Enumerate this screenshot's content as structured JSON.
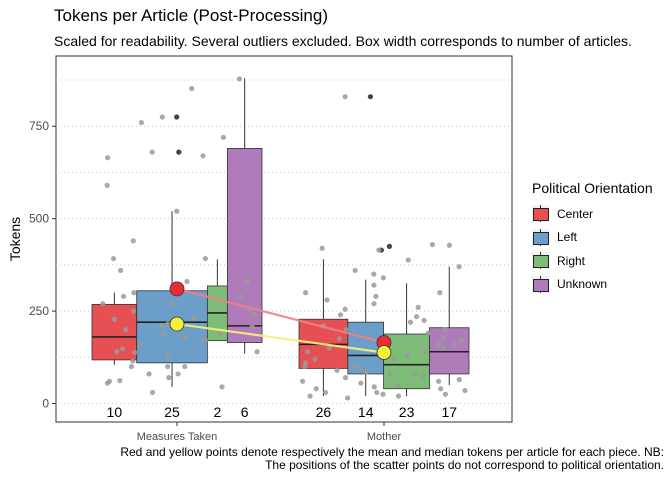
{
  "chart_data": {
    "type": "boxplot",
    "title": "Tokens per Article (Post-Processing)",
    "subtitle": "Scaled for readability. Several outliers excluded. Box width corresponds to number of articles.",
    "caption": "Red and yellow points denote respectively the mean and median tokens per article for each piece. NB: The positions of the scatter points do not correspond to political orientation.",
    "ylabel": "Tokens",
    "xlabel": "",
    "ylim": [
      -50,
      940
    ],
    "yticks": [
      0,
      250,
      500,
      750
    ],
    "grid": "horizontal-dotted",
    "legend": {
      "title": "Political Orientation",
      "position": "right",
      "entries": [
        {
          "name": "Center",
          "color": "#e75053"
        },
        {
          "name": "Left",
          "color": "#6b9ec8"
        },
        {
          "name": "Right",
          "color": "#7ebd78"
        },
        {
          "name": "Unknown",
          "color": "#b07bbb"
        }
      ]
    },
    "categories": [
      "Measures Taken",
      "Mother"
    ],
    "groups": [
      {
        "category": "Measures Taken",
        "boxes": [
          {
            "orientation": "Center",
            "n": 10,
            "min": 105,
            "q1": 118,
            "median": 180,
            "q3": 268,
            "max": 300
          },
          {
            "orientation": "Left",
            "n": 25,
            "min": 45,
            "q1": 110,
            "median": 220,
            "q3": 305,
            "max": 520
          },
          {
            "orientation": "Right",
            "n": 2,
            "min": 170,
            "q1": 170,
            "median": 245,
            "q3": 318,
            "max": 390
          },
          {
            "orientation": "Unknown",
            "n": 6,
            "min": 135,
            "q1": 165,
            "median": 210,
            "q3": 690,
            "max": 880
          }
        ],
        "outliers": [
          775,
          680
        ],
        "mean": 310,
        "median": 215,
        "jitter": [
          392,
          138,
          100,
          80,
          55,
          878,
          852,
          775,
          760,
          720,
          670,
          590,
          520,
          440,
          392,
          360,
          330,
          300,
          290,
          270,
          255,
          240,
          228,
          215,
          208,
          200,
          190,
          180,
          172,
          160,
          148,
          140,
          128,
          115,
          100,
          80,
          62,
          45,
          30,
          680,
          665,
          330,
          300,
          290,
          270,
          250,
          230,
          210,
          190,
          170,
          140,
          100,
          70,
          60
        ]
      },
      {
        "category": "Mother",
        "boxes": [
          {
            "orientation": "Center",
            "n": 26,
            "min": 20,
            "q1": 95,
            "median": 160,
            "q3": 228,
            "max": 390
          },
          {
            "orientation": "Left",
            "n": 14,
            "min": 20,
            "q1": 80,
            "median": 130,
            "q3": 220,
            "max": 335
          },
          {
            "orientation": "Right",
            "n": 23,
            "min": 20,
            "q1": 40,
            "median": 105,
            "q3": 188,
            "max": 325
          },
          {
            "orientation": "Unknown",
            "n": 17,
            "min": 50,
            "q1": 80,
            "median": 140,
            "q3": 205,
            "max": 370
          }
        ],
        "outliers": [
          830,
          415,
          425
        ],
        "mean": 165,
        "median": 138,
        "jitter": [
          388,
          370,
          360,
          350,
          340,
          320,
          300,
          290,
          270,
          255,
          240,
          225,
          210,
          200,
          190,
          180,
          170,
          160,
          150,
          140,
          130,
          120,
          110,
          100,
          95,
          90,
          85,
          80,
          75,
          70,
          65,
          60,
          55,
          50,
          45,
          40,
          35,
          30,
          25,
          20,
          415,
          420,
          430,
          428,
          830,
          300,
          280,
          260,
          235,
          220,
          200,
          175,
          160,
          150,
          140,
          120,
          100,
          80,
          60,
          40,
          30,
          25,
          20,
          15
        ]
      }
    ],
    "trend_lines": [
      {
        "name": "mean",
        "color": "#f08084",
        "from": 310,
        "to": 165
      },
      {
        "name": "median",
        "color": "#f3f37a",
        "from": 215,
        "to": 138
      }
    ]
  }
}
